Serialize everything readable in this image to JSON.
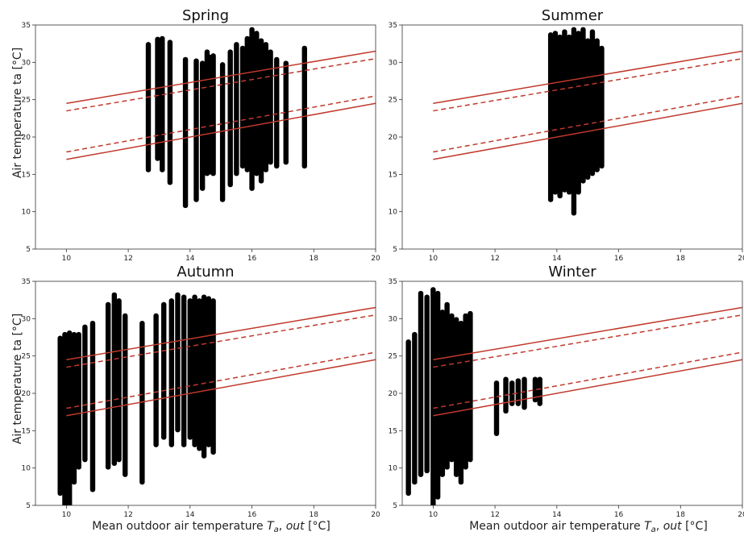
{
  "figure": {
    "ylabel": "Air temperature ta [°C]",
    "xlabel": "Mean outdoor air temperature T_a, out [°C]"
  },
  "chart_data": [
    {
      "type": "scatter",
      "title": "Spring",
      "xlim": [
        9,
        20
      ],
      "ylim": [
        5,
        35
      ],
      "xticks": [
        "10",
        "12",
        "14",
        "16",
        "18",
        "20"
      ],
      "yticks": [
        "5",
        "10",
        "15",
        "20",
        "25",
        "30",
        "35"
      ],
      "grid": false,
      "clusters": [
        {
          "x": 12.65,
          "ymin": 15.5,
          "ymax": 32.5
        },
        {
          "x": 12.95,
          "ymin": 17,
          "ymax": 33.2
        },
        {
          "x": 13.1,
          "ymin": 15.5,
          "ymax": 33.3
        },
        {
          "x": 13.35,
          "ymin": 13.8,
          "ymax": 32.8
        },
        {
          "x": 13.85,
          "ymin": 10.7,
          "ymax": 30.5
        },
        {
          "x": 14.2,
          "ymin": 11.5,
          "ymax": 30.3
        },
        {
          "x": 14.4,
          "ymin": 13,
          "ymax": 30
        },
        {
          "x": 14.55,
          "ymin": 15,
          "ymax": 31.5
        },
        {
          "x": 14.65,
          "ymin": 15.2,
          "ymax": 30.8
        },
        {
          "x": 14.75,
          "ymin": 15,
          "ymax": 31
        },
        {
          "x": 15.05,
          "ymin": 11.5,
          "ymax": 29.8
        },
        {
          "x": 15.3,
          "ymin": 13.5,
          "ymax": 31.5
        },
        {
          "x": 15.5,
          "ymin": 15,
          "ymax": 32.5
        },
        {
          "x": 15.7,
          "ymin": 16,
          "ymax": 32
        },
        {
          "x": 15.85,
          "ymin": 15.5,
          "ymax": 33.3
        },
        {
          "x": 16,
          "ymin": 13,
          "ymax": 34.5
        },
        {
          "x": 16.15,
          "ymin": 15,
          "ymax": 34
        },
        {
          "x": 16.3,
          "ymin": 14,
          "ymax": 33
        },
        {
          "x": 16.45,
          "ymin": 15.5,
          "ymax": 32.5
        },
        {
          "x": 16.6,
          "ymin": 16.5,
          "ymax": 31.5
        },
        {
          "x": 16.8,
          "ymin": 16,
          "ymax": 30.5
        },
        {
          "x": 17.1,
          "ymin": 16.5,
          "ymax": 30
        },
        {
          "x": 17.7,
          "ymin": 16,
          "ymax": 32
        }
      ]
    },
    {
      "type": "scatter",
      "title": "Summer",
      "xlim": [
        9,
        20
      ],
      "ylim": [
        5,
        35
      ],
      "xticks": [
        "10",
        "12",
        "14",
        "16",
        "18",
        "20"
      ],
      "yticks": [
        "5",
        "10",
        "15",
        "20",
        "25",
        "30",
        "35"
      ],
      "grid": false,
      "clusters": [
        {
          "x": 13.8,
          "ymin": 11.5,
          "ymax": 33.8
        },
        {
          "x": 13.95,
          "ymin": 12.5,
          "ymax": 34
        },
        {
          "x": 14.1,
          "ymin": 12,
          "ymax": 33.5
        },
        {
          "x": 14.25,
          "ymin": 12.8,
          "ymax": 34.2
        },
        {
          "x": 14.4,
          "ymin": 12.5,
          "ymax": 33.5
        },
        {
          "x": 14.55,
          "ymin": 9.7,
          "ymax": 34.5
        },
        {
          "x": 14.7,
          "ymin": 12.5,
          "ymax": 34
        },
        {
          "x": 14.85,
          "ymin": 14,
          "ymax": 34.5
        },
        {
          "x": 15.0,
          "ymin": 14.5,
          "ymax": 33
        },
        {
          "x": 15.15,
          "ymin": 15,
          "ymax": 34.2
        },
        {
          "x": 15.3,
          "ymin": 15.5,
          "ymax": 33
        },
        {
          "x": 15.45,
          "ymin": 16,
          "ymax": 32
        }
      ]
    },
    {
      "type": "scatter",
      "title": "Autumn",
      "xlim": [
        9,
        20
      ],
      "ylim": [
        5,
        35
      ],
      "xticks": [
        "10",
        "12",
        "14",
        "16",
        "18",
        "20"
      ],
      "yticks": [
        "5",
        "10",
        "15",
        "20",
        "25",
        "30",
        "35"
      ],
      "grid": false,
      "clusters": [
        {
          "x": 9.8,
          "ymin": 6.5,
          "ymax": 27.5
        },
        {
          "x": 9.95,
          "ymin": 5,
          "ymax": 28
        },
        {
          "x": 10.1,
          "ymin": 5,
          "ymax": 28.2
        },
        {
          "x": 10.25,
          "ymin": 8,
          "ymax": 28
        },
        {
          "x": 10.4,
          "ymin": 10,
          "ymax": 28
        },
        {
          "x": 10.6,
          "ymin": 11,
          "ymax": 29
        },
        {
          "x": 10.85,
          "ymin": 7,
          "ymax": 29.5
        },
        {
          "x": 11.35,
          "ymin": 10,
          "ymax": 32
        },
        {
          "x": 11.55,
          "ymin": 10.5,
          "ymax": 33.3
        },
        {
          "x": 11.7,
          "ymin": 11,
          "ymax": 32.5
        },
        {
          "x": 11.9,
          "ymin": 9,
          "ymax": 30.5
        },
        {
          "x": 12.45,
          "ymin": 8,
          "ymax": 29.5
        },
        {
          "x": 12.9,
          "ymin": 13,
          "ymax": 30.5
        },
        {
          "x": 13.15,
          "ymin": 14,
          "ymax": 32
        },
        {
          "x": 13.4,
          "ymin": 13,
          "ymax": 32.5
        },
        {
          "x": 13.6,
          "ymin": 15,
          "ymax": 33.3
        },
        {
          "x": 13.8,
          "ymin": 13,
          "ymax": 33
        },
        {
          "x": 14.0,
          "ymin": 14,
          "ymax": 32.5
        },
        {
          "x": 14.15,
          "ymin": 13,
          "ymax": 33
        },
        {
          "x": 14.3,
          "ymin": 12.5,
          "ymax": 32.5
        },
        {
          "x": 14.45,
          "ymin": 11.5,
          "ymax": 33
        },
        {
          "x": 14.6,
          "ymin": 13,
          "ymax": 32.8
        },
        {
          "x": 14.75,
          "ymin": 12,
          "ymax": 32.5
        }
      ]
    },
    {
      "type": "scatter",
      "title": "Winter",
      "xlim": [
        9,
        20
      ],
      "ylim": [
        5,
        35
      ],
      "xticks": [
        "10",
        "12",
        "14",
        "16",
        "18",
        "20"
      ],
      "yticks": [
        "5",
        "10",
        "15",
        "20",
        "25",
        "30",
        "35"
      ],
      "grid": false,
      "clusters": [
        {
          "x": 9.2,
          "ymin": 6.5,
          "ymax": 27
        },
        {
          "x": 9.4,
          "ymin": 8,
          "ymax": 28
        },
        {
          "x": 9.6,
          "ymin": 9,
          "ymax": 33.5
        },
        {
          "x": 9.8,
          "ymin": 9.5,
          "ymax": 33
        },
        {
          "x": 10.0,
          "ymin": 5,
          "ymax": 34
        },
        {
          "x": 10.15,
          "ymin": 6,
          "ymax": 33.5
        },
        {
          "x": 10.3,
          "ymin": 9,
          "ymax": 31
        },
        {
          "x": 10.45,
          "ymin": 10,
          "ymax": 32
        },
        {
          "x": 10.6,
          "ymin": 11,
          "ymax": 30.5
        },
        {
          "x": 10.75,
          "ymin": 9,
          "ymax": 30
        },
        {
          "x": 10.9,
          "ymin": 8,
          "ymax": 29.5
        },
        {
          "x": 11.05,
          "ymin": 10,
          "ymax": 30.5
        },
        {
          "x": 11.2,
          "ymin": 11,
          "ymax": 30.8
        },
        {
          "x": 12.05,
          "ymin": 14.5,
          "ymax": 21.5
        },
        {
          "x": 12.35,
          "ymin": 17.5,
          "ymax": 22
        },
        {
          "x": 12.55,
          "ymin": 18.5,
          "ymax": 21.5
        },
        {
          "x": 12.75,
          "ymin": 18.5,
          "ymax": 21.8
        },
        {
          "x": 12.95,
          "ymin": 18,
          "ymax": 22
        },
        {
          "x": 13.3,
          "ymin": 19,
          "ymax": 22
        },
        {
          "x": 13.45,
          "ymin": 18.5,
          "ymax": 22
        }
      ]
    }
  ],
  "comfort_lines": {
    "color": "#c0392b",
    "x_range": [
      10,
      20
    ],
    "solid_upper": [
      24.5,
      31.5
    ],
    "dashed_upper": [
      23.5,
      30.5
    ],
    "dashed_lower": [
      18.0,
      25.5
    ],
    "solid_lower": [
      17.0,
      24.5
    ]
  }
}
